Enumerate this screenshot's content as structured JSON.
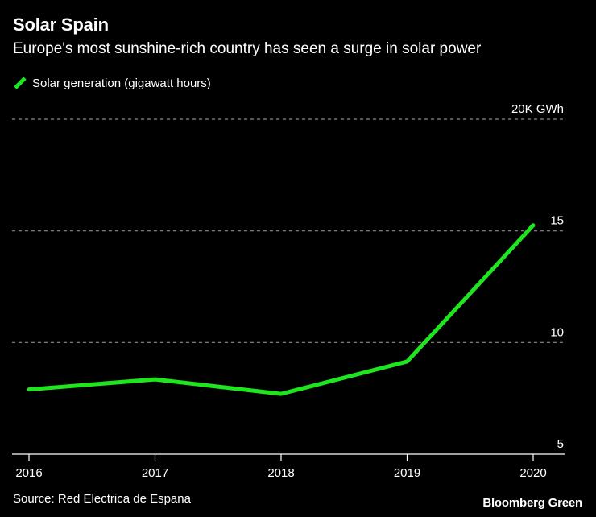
{
  "header": {
    "title": "Solar Spain",
    "subtitle": "Europe's most sunshine-rich country has seen a surge in solar power"
  },
  "legend": {
    "label": "Solar generation (gigawatt hours)"
  },
  "footer": {
    "source": "Source: Red Electrica de Espana",
    "brand": "Bloomberg Green"
  },
  "colors": {
    "background": "#000000",
    "line": "#1fe51f",
    "grid": "#8c8c8c",
    "text": "#ffffff"
  },
  "chart_data": {
    "type": "line",
    "title": "Solar Spain",
    "subtitle": "Europe's most sunshine-rich country has seen a surge in solar power",
    "xlabel": "",
    "ylabel": "",
    "categories": [
      "2016",
      "2017",
      "2018",
      "2019",
      "2020"
    ],
    "series": [
      {
        "name": "Solar generation (gigawatt hours)",
        "values": [
          7.9,
          8.35,
          7.7,
          9.15,
          15.25
        ]
      }
    ],
    "ylim": [
      5,
      20
    ],
    "yticks": [
      {
        "value": 5,
        "label": "5"
      },
      {
        "value": 10,
        "label": "10"
      },
      {
        "value": 15,
        "label": "15"
      },
      {
        "value": 20,
        "label": "20K GWh"
      }
    ],
    "grid": true,
    "legend_position": "top-left"
  }
}
